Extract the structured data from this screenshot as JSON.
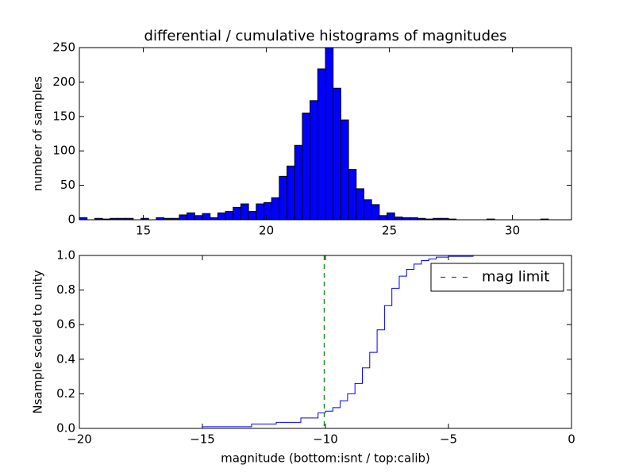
{
  "chart_data": [
    {
      "type": "histogram",
      "title": "differential / cumulative histograms of magnitudes",
      "ylabel": "number of samples",
      "color": "#0000ff",
      "bins": [
        12.4,
        12.7125,
        13.025,
        13.3375,
        13.65,
        13.9625,
        14.275,
        14.5875,
        14.9,
        15.2125,
        15.525,
        15.8375,
        16.15,
        16.4625,
        16.775,
        17.0875,
        17.4,
        17.7125,
        18.025,
        18.3375,
        18.65,
        18.9625,
        19.275,
        19.5875,
        19.9,
        20.2125,
        20.525,
        20.8375,
        21.15,
        21.4625,
        21.775,
        22.0875,
        22.4,
        22.7125,
        23.025,
        23.3375,
        23.65,
        23.9625,
        24.275,
        24.5875,
        24.9,
        25.2125,
        25.525,
        25.8375,
        26.15,
        26.4625,
        26.775,
        27.0875,
        27.4,
        27.7125,
        28.025,
        28.3375,
        28.65,
        28.9625,
        29.275,
        29.5875,
        29.9,
        30.2125,
        30.525,
        30.8375,
        31.15,
        31.4625,
        31.775,
        32.0875,
        32.4
      ],
      "values": [
        3,
        0,
        2,
        1,
        2,
        2,
        2,
        0,
        2,
        0,
        3,
        2,
        2,
        7,
        10,
        6,
        9,
        3,
        10,
        12,
        18,
        23,
        12,
        23,
        25,
        32,
        63,
        78,
        108,
        155,
        173,
        219,
        250,
        191,
        145,
        73,
        45,
        29,
        22,
        6,
        10,
        4,
        3,
        3,
        2,
        1,
        2,
        2,
        1,
        0,
        0,
        0,
        0,
        1,
        0,
        0,
        0,
        0,
        0,
        0,
        1,
        0,
        0,
        0
      ],
      "xlim": [
        12.4,
        32.4
      ],
      "xticks": [
        15,
        20,
        25,
        30
      ],
      "ylim": [
        0,
        250
      ],
      "yticks": [
        0,
        50,
        100,
        150,
        200,
        250
      ]
    },
    {
      "type": "step",
      "xlabel": "magnitude (bottom:isnt / top:calib)",
      "ylabel": "Nsample scaled to unity",
      "color": "#0000ff",
      "x": [
        -20,
        -15,
        -13,
        -12,
        -11,
        -10.3,
        -10,
        -9.7,
        -9.4,
        -9.1,
        -8.8,
        -8.5,
        -8.2,
        -7.9,
        -7.6,
        -7.3,
        -7.0,
        -6.7,
        -6.4,
        -6.1,
        -5.8,
        -5.5,
        -5,
        -4,
        0
      ],
      "values": [
        0,
        0.01,
        0.025,
        0.035,
        0.06,
        0.09,
        0.1,
        0.12,
        0.16,
        0.2,
        0.26,
        0.35,
        0.44,
        0.57,
        0.71,
        0.81,
        0.88,
        0.92,
        0.95,
        0.97,
        0.98,
        0.99,
        0.995,
        1.0,
        0
      ],
      "vlines": [
        {
          "name": "mag limit",
          "x": -10.05,
          "color": "#008000",
          "style": "dashed"
        }
      ],
      "legend": "upper right",
      "xlim": [
        -20,
        0
      ],
      "xticks": [
        {
          "value": -20,
          "label": "−20"
        },
        {
          "value": -15,
          "label": "−15"
        },
        {
          "value": -10,
          "label": "−10"
        },
        {
          "value": -5,
          "label": "−5"
        },
        0
      ],
      "ylim": [
        0,
        1
      ],
      "yticks": [
        {
          "value": 0,
          "label": "0.0"
        },
        {
          "value": 0.2,
          "label": "0.2"
        },
        {
          "value": 0.4,
          "label": "0.4"
        },
        {
          "value": 0.6,
          "label": "0.6"
        },
        {
          "value": 0.8,
          "label": "0.8"
        },
        {
          "value": 1,
          "label": "1.0"
        }
      ]
    }
  ]
}
